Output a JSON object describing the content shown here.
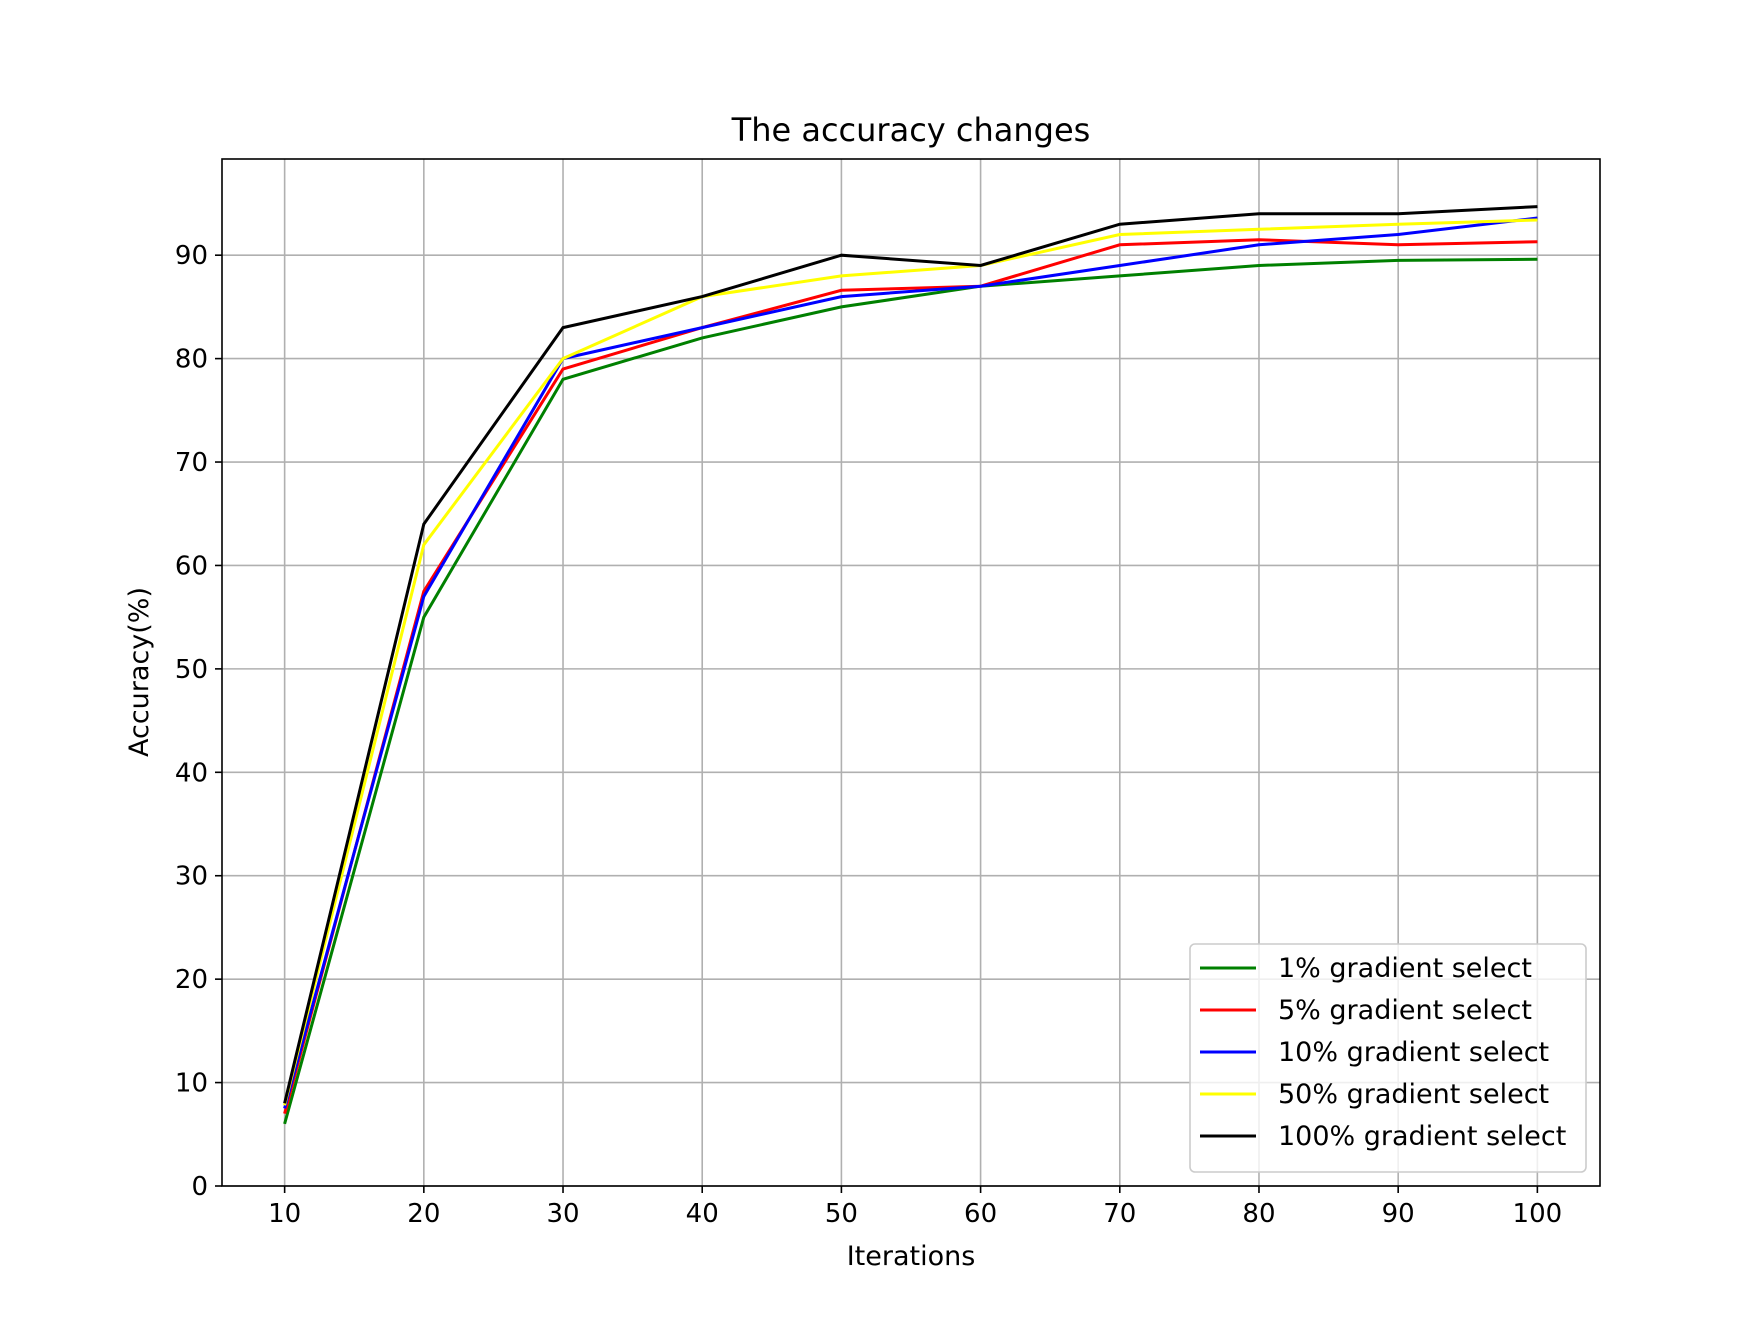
{
  "chart_data": {
    "type": "line",
    "title": "The accuracy changes",
    "xlabel": "Iterations",
    "ylabel": "Accuracy(%)",
    "x": [
      10,
      20,
      30,
      40,
      50,
      60,
      70,
      80,
      90,
      100
    ],
    "xlim": [
      5.5,
      104.5
    ],
    "ylim": [
      0,
      99.3
    ],
    "xticks": [
      10,
      20,
      30,
      40,
      50,
      60,
      70,
      80,
      90,
      100
    ],
    "yticks": [
      0,
      10,
      20,
      30,
      40,
      50,
      60,
      70,
      80,
      90
    ],
    "grid": true,
    "legend_position": "lower-right",
    "series": [
      {
        "name": "1% gradient select",
        "color": "#008000",
        "values": [
          6,
          55,
          78,
          82,
          85,
          87,
          88,
          89,
          89.5,
          89.6
        ]
      },
      {
        "name": "5% gradient select",
        "color": "#ff0000",
        "values": [
          7,
          57.5,
          79,
          83,
          86.6,
          87,
          91,
          91.5,
          91,
          91.3
        ]
      },
      {
        "name": "10% gradient select",
        "color": "#0000ff",
        "values": [
          7.5,
          57,
          80,
          83,
          86,
          87,
          89,
          91,
          92,
          93.6
        ]
      },
      {
        "name": "50% gradient select",
        "color": "#ffff00",
        "values": [
          7.8,
          62,
          80,
          86,
          88,
          89,
          92,
          92.5,
          93,
          93.4
        ]
      },
      {
        "name": "100% gradient select",
        "color": "#000000",
        "values": [
          8,
          64,
          83,
          86,
          90,
          89,
          93,
          94,
          94,
          94.7
        ]
      }
    ]
  }
}
